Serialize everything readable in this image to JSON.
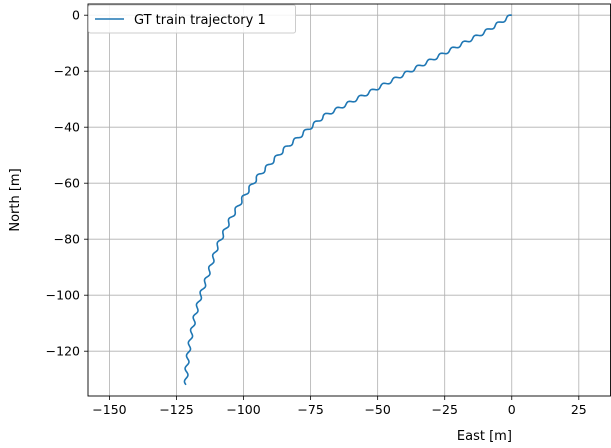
{
  "chart_data": {
    "type": "line",
    "title": "",
    "xlabel": "East [m]",
    "ylabel": "North [m]",
    "xlim": [
      -158,
      37
    ],
    "ylim": [
      -136,
      4
    ],
    "xticks": [
      -150,
      -125,
      -100,
      -75,
      -50,
      -25,
      0,
      25
    ],
    "yticks": [
      0,
      -20,
      -40,
      -60,
      -80,
      -100,
      -120
    ],
    "xtick_labels": [
      "−150",
      "−125",
      "−100",
      "−75",
      "−50",
      "−25",
      "0",
      "25"
    ],
    "ytick_labels": [
      "0",
      "−20",
      "−40",
      "−60",
      "−80",
      "−100",
      "−120"
    ],
    "grid": true,
    "legend_position": "top-left",
    "series": [
      {
        "name": "GT train trajectory 1",
        "color": "#1f77b4",
        "wavy": true,
        "x": [
          0,
          -10,
          -20,
          -30,
          -40,
          -50,
          -60,
          -70,
          -75,
          -80,
          -85,
          -90,
          -95,
          -100,
          -105,
          -110,
          -113,
          -116,
          -118,
          -119.5,
          -120.5,
          -121.2,
          -121.5
        ],
        "y": [
          0,
          -6,
          -11,
          -16,
          -21,
          -26,
          -31,
          -36,
          -40,
          -44,
          -48,
          -53,
          -58,
          -65,
          -73,
          -83,
          -92,
          -100,
          -107,
          -114,
          -120,
          -126,
          -132
        ]
      }
    ]
  }
}
